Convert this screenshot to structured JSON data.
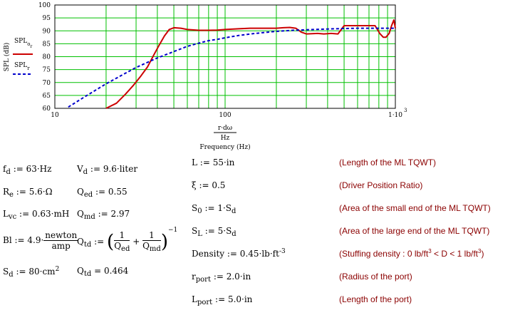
{
  "chart_data": {
    "type": "line",
    "xscale": "log",
    "xlim": [
      10,
      1000
    ],
    "ylim": [
      60,
      100
    ],
    "yticks": [
      60,
      65,
      70,
      75,
      80,
      85,
      90,
      95,
      100
    ],
    "xtick_labels": [
      "10",
      "100",
      "1·10"
    ],
    "xtick_label_exp": "3",
    "ylabel": "SPL (dB)",
    "xlabel_num": "r·dω",
    "xlabel_den": "Hz",
    "xlabel_caption": "Frequency (Hz)",
    "grid": true,
    "series": [
      {
        "name": "SPL",
        "name_sub": "o",
        "name_sub2": "r",
        "color": "#cc0000",
        "style": "solid",
        "x": [
          20,
          23,
          26,
          29,
          32,
          35,
          38,
          41,
          44,
          47,
          50,
          55,
          60,
          70,
          80,
          90,
          100,
          120,
          140,
          160,
          180,
          200,
          220,
          240,
          260,
          280,
          300,
          350,
          380,
          420,
          460,
          500,
          560,
          640,
          700,
          760,
          810,
          850,
          880,
          920,
          950,
          980,
          1000
        ],
        "y": [
          59,
          62,
          65.5,
          69,
          72.5,
          76,
          80.5,
          84.5,
          88,
          90.5,
          91.2,
          91,
          90.5,
          90.2,
          90.2,
          90.3,
          90.5,
          90.8,
          91,
          91,
          91,
          91,
          91.2,
          91.3,
          91,
          89.5,
          88.8,
          89,
          88.8,
          89,
          88.8,
          92,
          92,
          92,
          92,
          92,
          89,
          87.5,
          87.5,
          89,
          92,
          94.2,
          91
        ]
      },
      {
        "name": "SPL",
        "name_sub": "r",
        "name_sub2": "",
        "color": "#0000cc",
        "style": "dashed",
        "x": [
          12,
          15,
          20,
          25,
          30,
          35,
          40,
          45,
          50,
          60,
          70,
          80,
          90,
          100,
          120,
          150,
          200,
          250,
          300,
          400,
          500,
          600,
          700,
          800,
          1000
        ],
        "y": [
          60.5,
          64.5,
          69.5,
          73,
          75.8,
          77.8,
          79.5,
          80.8,
          82,
          84,
          85.2,
          86.2,
          86.7,
          87.3,
          88.2,
          89,
          89.8,
          90.2,
          90.4,
          90.7,
          90.9,
          91,
          91,
          91,
          91
        ]
      }
    ]
  },
  "left_eqs": [
    {
      "var": "f",
      "sub": "d",
      "expr": ":= 63·Hz"
    },
    {
      "var": "R",
      "sub": "e",
      "expr": ":= 5.6·Ω"
    },
    {
      "var": "L",
      "sub": "vc",
      "expr": ":= 0.63·mH"
    },
    {
      "var": "Bl",
      "sub": "",
      "expr": ":= 4.9·",
      "frac_num": "newton",
      "frac_den": "amp"
    },
    {
      "var": "S",
      "sub": "d",
      "expr": ":= 80·cm",
      "sup": "2"
    }
  ],
  "mid_eqs": [
    {
      "var": "V",
      "sub": "d",
      "expr": ":= 9.6·liter"
    },
    {
      "var": "Q",
      "sub": "ed",
      "expr": ":= 0.55"
    },
    {
      "var": "Q",
      "sub": "md",
      "expr": ":= 2.97"
    },
    {
      "var": "Q",
      "sub": "td",
      "expr": ":=",
      "f1_den_var": "Q",
      "f1_den_sub": "ed",
      "f2_den_var": "Q",
      "f2_den_sub": "md",
      "one": "1",
      "plus": "+",
      "exp": "−1"
    },
    {
      "var": "Q",
      "sub": "td",
      "expr": "= 0.464"
    }
  ],
  "right_eqs": [
    {
      "var": "L",
      "sub": "",
      "expr": ":= 55·in",
      "comment": "(Length of the ML TQWT)"
    },
    {
      "var": "ξ",
      "sub": "",
      "expr": ":= 0.5",
      "comment": "(Driver Position Ratio)"
    },
    {
      "var": "S",
      "sub": "0",
      "expr": ":= 1·S",
      "sub2": "d",
      "comment": "(Area of the small end of the ML TQWT)"
    },
    {
      "var": "S",
      "sub": "L",
      "expr": ":= 5·S",
      "sub2": "d",
      "comment": "(Area of the large end of the ML TQWT)"
    },
    {
      "var": "Density",
      "sub": "",
      "expr": ":= 0.45·lb·ft",
      "sup": "-3",
      "comment_a": "(Stuffing density : 0 lb/ft",
      "comment_sup": "3",
      "comment_b": " < D < 1 lb/ft",
      "comment_sup2": "3",
      "comment_c": ")"
    },
    {
      "var": "r",
      "sub": "port",
      "expr": ":= 2.0·in",
      "comment": "(Radius of the port)"
    },
    {
      "var": "L",
      "sub": "port",
      "expr": ":= 5.0·in",
      "comment": "(Length of the port)"
    }
  ]
}
